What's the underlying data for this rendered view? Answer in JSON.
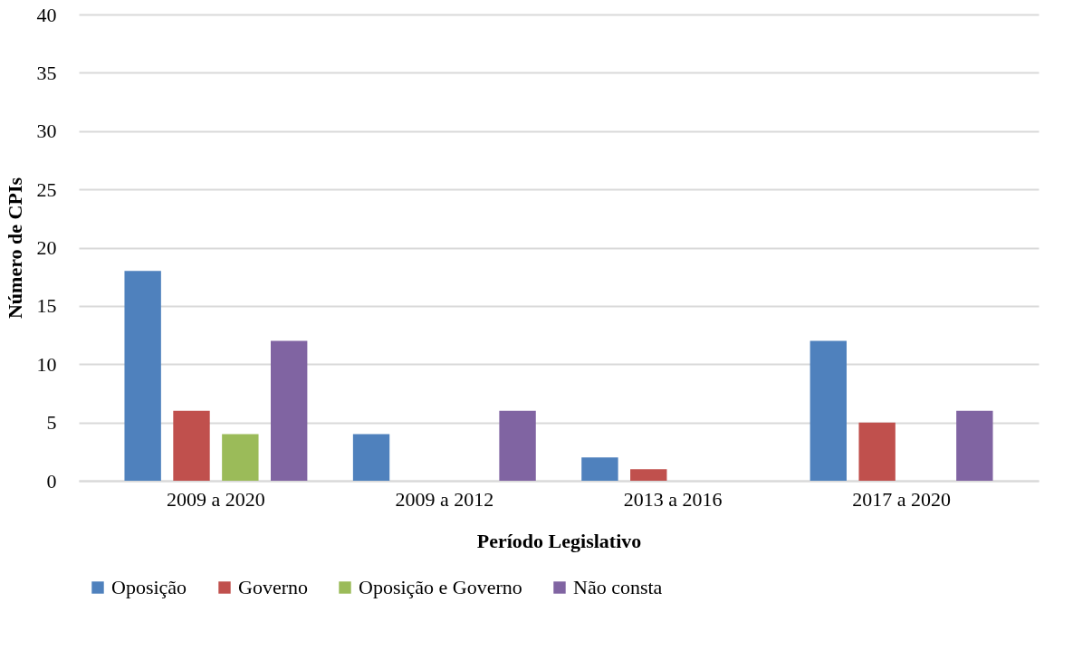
{
  "chart_data": {
    "type": "bar",
    "xlabel": "Período Legislativo",
    "ylabel": "Número de CPIs",
    "categories": [
      "2009 a 2020",
      "2009 a 2012",
      "2013 a 2016",
      "2017 a 2020"
    ],
    "series": [
      {
        "name": "Oposição",
        "color": "#4f81bd",
        "values": [
          18,
          4,
          2,
          12
        ]
      },
      {
        "name": "Governo",
        "color": "#c0504d",
        "values": [
          6,
          0,
          1,
          5
        ]
      },
      {
        "name": "Oposição e Governo",
        "color": "#9bbb59",
        "values": [
          4,
          0,
          0,
          0
        ]
      },
      {
        "name": "Não consta",
        "color": "#8064a2",
        "values": [
          12,
          6,
          0,
          6
        ]
      }
    ],
    "ylim": [
      0,
      40
    ],
    "yticks": [
      0,
      5,
      10,
      15,
      20,
      25,
      30,
      35,
      40
    ],
    "grid": "y",
    "legend": "bottom"
  }
}
